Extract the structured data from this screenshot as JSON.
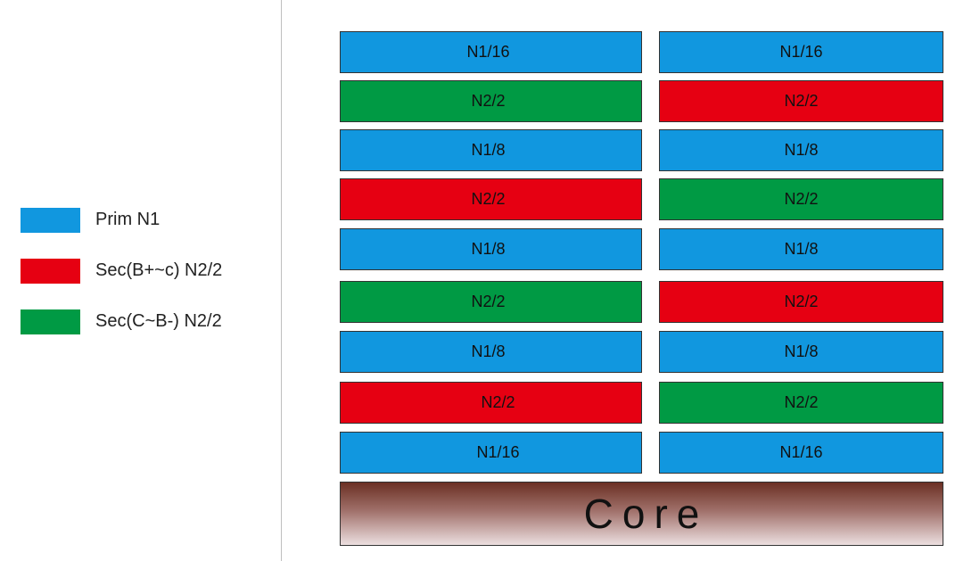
{
  "colors": {
    "primary_n1": "#1197df",
    "sec_b_plus_c": "#e60012",
    "sec_c_b_minus": "#009a44"
  },
  "legend": [
    {
      "label": "Prim N1",
      "color_key": "primary_n1"
    },
    {
      "label": "Sec(B+~c) N2/2",
      "color_key": "sec_b_plus_c"
    },
    {
      "label": "Sec(C~B-) N2/2",
      "color_key": "sec_c_b_minus"
    }
  ],
  "stack": {
    "rows": [
      {
        "left": {
          "label": "N1/16",
          "type": "primary_n1"
        },
        "right": {
          "label": "N1/16",
          "type": "primary_n1"
        }
      },
      {
        "left": {
          "label": "N2/2",
          "type": "sec_c_b_minus"
        },
        "right": {
          "label": "N2/2",
          "type": "sec_b_plus_c"
        }
      },
      {
        "left": {
          "label": "N1/8",
          "type": "primary_n1"
        },
        "right": {
          "label": "N1/8",
          "type": "primary_n1"
        }
      },
      {
        "left": {
          "label": "N2/2",
          "type": "sec_b_plus_c"
        },
        "right": {
          "label": "N2/2",
          "type": "sec_c_b_minus"
        }
      },
      {
        "left": {
          "label": "N1/8",
          "type": "primary_n1"
        },
        "right": {
          "label": "N1/8",
          "type": "primary_n1"
        }
      },
      {
        "left": {
          "label": "N2/2",
          "type": "sec_c_b_minus"
        },
        "right": {
          "label": "N2/2",
          "type": "sec_b_plus_c"
        }
      },
      {
        "left": {
          "label": "N1/8",
          "type": "primary_n1"
        },
        "right": {
          "label": "N1/8",
          "type": "primary_n1"
        }
      },
      {
        "left": {
          "label": "N2/2",
          "type": "sec_b_plus_c"
        },
        "right": {
          "label": "N2/2",
          "type": "sec_c_b_minus"
        }
      },
      {
        "left": {
          "label": "N1/16",
          "type": "primary_n1"
        },
        "right": {
          "label": "N1/16",
          "type": "primary_n1"
        }
      }
    ],
    "core_label": "Core"
  }
}
